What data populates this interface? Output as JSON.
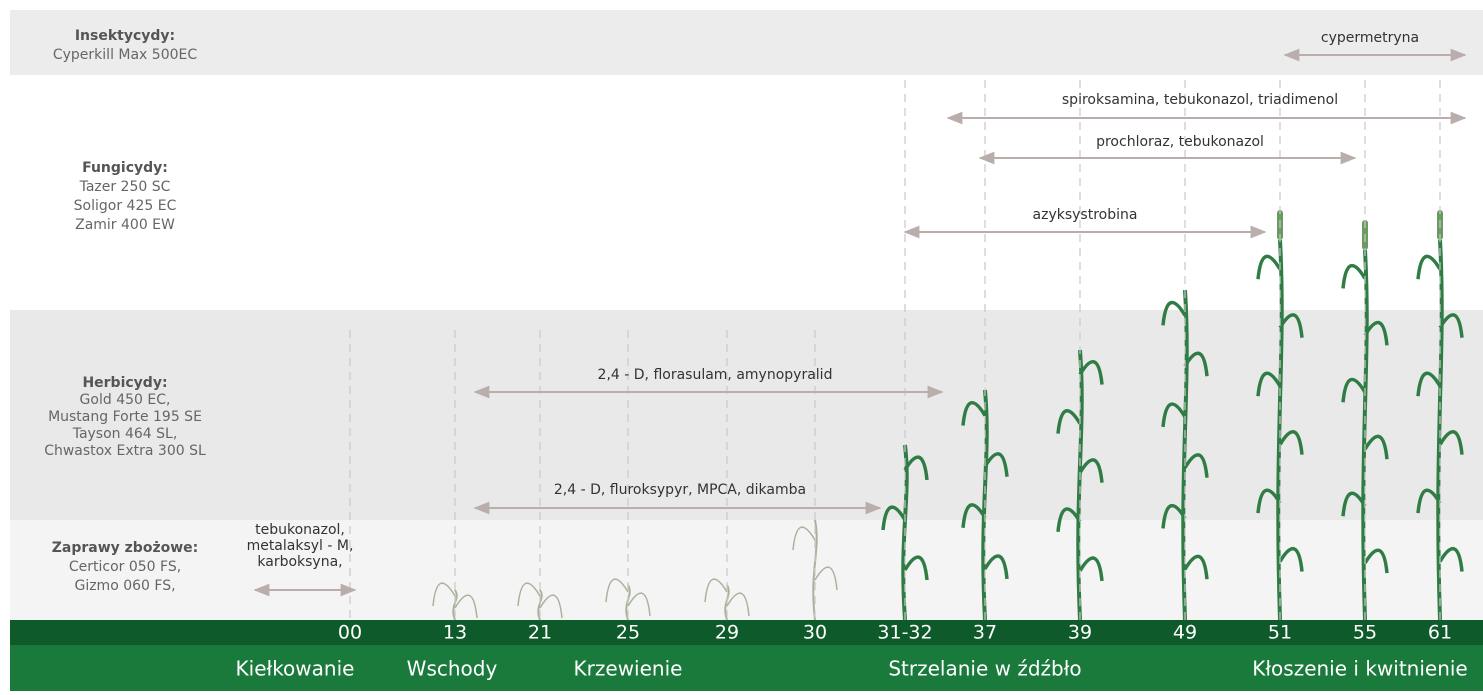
{
  "groups": [
    {
      "title": "Insektycydy:",
      "products": [
        "Cyperkill Max 500EC"
      ]
    },
    {
      "title": "Fungicydy:",
      "products": [
        "Tazer 250 SC",
        "Soligor 425 EC",
        "Zamir 400 EW"
      ]
    },
    {
      "title": "Herbicydy:",
      "products": [
        "Gold 450 EC,",
        "Mustang Forte 195 SE",
        "Tayson 464 SL,",
        "Chwastox Extra 300 SL"
      ]
    },
    {
      "title": "Zaprawy zbożowe:",
      "products": [
        "Certicor 050 FS,",
        "Gizmo 060 FS,"
      ]
    }
  ],
  "arrows": [
    {
      "label": [
        "cypermetryna"
      ]
    },
    {
      "label": [
        "spiroksamina, tebukonazol, triadimenol"
      ]
    },
    {
      "label": [
        "prochloraz, tebukonazol"
      ]
    },
    {
      "label": [
        "azyksystrobina"
      ]
    },
    {
      "label": [
        "2,4 - D, florasulam, amynopyralid"
      ]
    },
    {
      "label": [
        "2,4 - D, fluroksypyr, MPCA, dikamba"
      ]
    },
    {
      "label": [
        "tebukonazol,",
        "metalaksyl - M,",
        "karboksyna,"
      ]
    }
  ],
  "stages": [
    "00",
    "13",
    "21",
    "25",
    "29",
    "30",
    "31-32",
    "37",
    "39",
    "49",
    "51",
    "55",
    "61"
  ],
  "phases": [
    "Kiełkowanie",
    "Wschody",
    "Krzewienie",
    "Strzelanie w źdźbło",
    "Kłoszenie i kwitnienie"
  ]
}
